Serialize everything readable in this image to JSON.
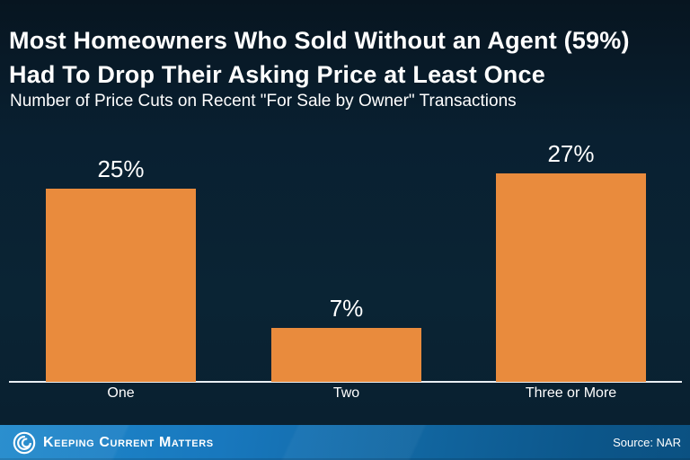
{
  "header": {
    "title_line1": "Most Homeowners Who Sold Without an Agent (59%)",
    "title_line2": "Had To Drop Their Asking Price at Least Once",
    "subtitle": "Number of Price Cuts on Recent \"For Sale by Owner\" Transactions"
  },
  "chart_data": {
    "type": "bar",
    "title": "Number of Price Cuts on Recent \"For Sale by Owner\" Transactions",
    "categories": [
      "One",
      "Two",
      "Three or More"
    ],
    "values": [
      25,
      7,
      27
    ],
    "value_labels": [
      "25%",
      "7%",
      "27%"
    ],
    "xlabel": "",
    "ylabel": "",
    "ylim": [
      0,
      30
    ],
    "grid": false,
    "legend": "none",
    "bar_color": "#E98B3D",
    "axis_line_color": "#E9EEF2",
    "label_color": "#FFFFFF"
  },
  "footer": {
    "brand": "Keeping Current Matters",
    "source": "Source: NAR",
    "bar_color_left": "#1E84C8",
    "bar_color_right": "#0B5182"
  },
  "colors": {
    "background_top": "#071520",
    "background_bottom": "#0A1E2B",
    "text": "#FFFFFF"
  }
}
